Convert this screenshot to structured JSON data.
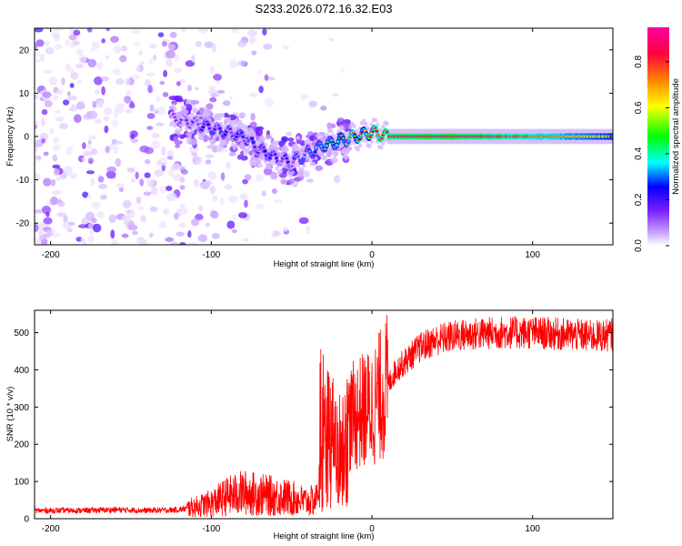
{
  "title": "S233.2026.072.16.32.E03",
  "chart_data": [
    {
      "type": "heatmap",
      "xlabel": "Height of straight line (km)",
      "ylabel": "Frequency (Hz)",
      "xlim": [
        -210,
        150
      ],
      "ylim": [
        -25,
        25
      ],
      "xticks": [
        -200,
        -100,
        0,
        100
      ],
      "yticks": [
        -20,
        -10,
        0,
        10,
        20
      ],
      "colorbar": {
        "label": "Normalized spectral amplitude",
        "ticks": [
          0.0,
          0.2,
          0.4,
          0.6,
          0.8
        ],
        "range": [
          0.0,
          0.95
        ],
        "colors": [
          "#ffffff",
          "#c9a3ff",
          "#7a1fff",
          "#0000ff",
          "#00ffff",
          "#00ff00",
          "#ffff00",
          "#ff8000",
          "#ff0040",
          "#ff00a0"
        ]
      },
      "ridge": {
        "x": [
          -120,
          -110,
          -100,
          -90,
          -80,
          -70,
          -60,
          -50,
          -40,
          -30,
          -20,
          -10,
          0,
          10,
          20,
          50,
          100,
          150
        ],
        "freq": [
          4,
          3,
          2,
          1,
          0,
          -3,
          -5,
          -6,
          -4,
          -2,
          -1,
          0,
          1,
          0,
          0,
          0,
          0,
          0
        ],
        "amplitude": [
          0.2,
          0.25,
          0.3,
          0.35,
          0.3,
          0.3,
          0.3,
          0.3,
          0.35,
          0.45,
          0.6,
          0.75,
          0.8,
          0.85,
          0.88,
          0.9,
          0.8,
          0.6
        ]
      }
    },
    {
      "type": "line",
      "xlabel": "Height of straight line (km)",
      "ylabel": "SNR (10 * v/v)",
      "xlim": [
        -210,
        150
      ],
      "ylim": [
        0,
        560
      ],
      "xticks": [
        -200,
        -100,
        0,
        100
      ],
      "yticks": [
        0,
        100,
        200,
        300,
        400,
        500
      ],
      "color": "#ff0000",
      "series": [
        {
          "name": "SNR",
          "x": [
            -210,
            -200,
            -180,
            -160,
            -140,
            -120,
            -110,
            -100,
            -90,
            -80,
            -70,
            -60,
            -50,
            -45,
            -40,
            -35,
            -33,
            -30,
            -28,
            -25,
            -22,
            -20,
            -18,
            -15,
            -10,
            -5,
            0,
            5,
            10,
            15,
            20,
            25,
            30,
            40,
            50,
            60,
            80,
            100,
            120,
            140,
            150
          ],
          "values": [
            22,
            22,
            22,
            24,
            22,
            24,
            32,
            42,
            60,
            70,
            65,
            60,
            55,
            50,
            45,
            50,
            90,
            200,
            300,
            260,
            230,
            220,
            230,
            260,
            280,
            290,
            300,
            330,
            360,
            400,
            420,
            440,
            460,
            480,
            490,
            495,
            500,
            500,
            495,
            490,
            495
          ]
        }
      ]
    }
  ]
}
